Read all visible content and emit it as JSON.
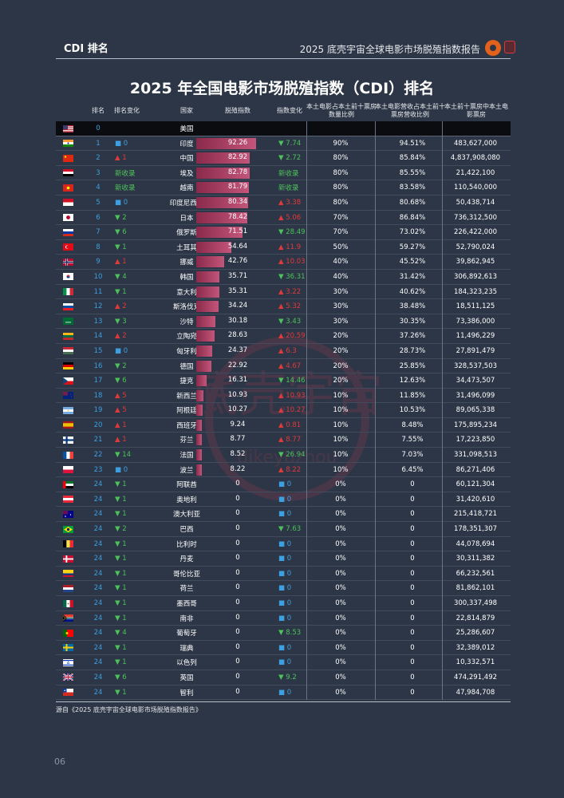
{
  "header": {
    "section_label": "CDI 排名",
    "report_title": "2025 底壳宇宙全球电影市场脱殖指数报告"
  },
  "title": "2025 年全国电影市场脱殖指数（CDI）排名",
  "columns": [
    "排名",
    "排名变化",
    "国家",
    "脱殖指数",
    "指数变化",
    "本土电影占本土前十票房数量比例",
    "本土电影营收占本土前十票房营收比例",
    "本土前十票房中本土电影票房"
  ],
  "watermark": {
    "cn": "底壳宇宙",
    "en": "dikeyuzhou"
  },
  "rows": [
    {
      "flag": "us",
      "rank": "0",
      "rank_change": "",
      "rc_dir": "none",
      "country": "美国",
      "cdi": "",
      "cdi_num": 0,
      "cdi_change": "",
      "cc_dir": "none",
      "p1": "",
      "p2": "",
      "box": ""
    },
    {
      "flag": "in",
      "rank": "1",
      "rank_change": "0",
      "rc_dir": "flat",
      "country": "印度",
      "cdi": "92.26",
      "cdi_num": 92.26,
      "cdi_change": "7.74",
      "cc_dir": "down",
      "p1": "90%",
      "p2": "94.51%",
      "box": "483,627,000"
    },
    {
      "flag": "cn",
      "rank": "2",
      "rank_change": "1",
      "rc_dir": "up",
      "country": "中国",
      "cdi": "82.92",
      "cdi_num": 82.92,
      "cdi_change": "2.72",
      "cc_dir": "down",
      "p1": "80%",
      "p2": "85.84%",
      "box": "4,837,908,080"
    },
    {
      "flag": "eg",
      "rank": "3",
      "rank_change": "新收录",
      "rc_dir": "new",
      "country": "埃及",
      "cdi": "82.78",
      "cdi_num": 82.78,
      "cdi_change": "新收录",
      "cc_dir": "new",
      "p1": "80%",
      "p2": "85.55%",
      "box": "21,422,100"
    },
    {
      "flag": "vn",
      "rank": "4",
      "rank_change": "新收录",
      "rc_dir": "new",
      "country": "越南",
      "cdi": "81.79",
      "cdi_num": 81.79,
      "cdi_change": "新收录",
      "cc_dir": "new",
      "p1": "80%",
      "p2": "83.58%",
      "box": "110,540,000"
    },
    {
      "flag": "id",
      "rank": "5",
      "rank_change": "0",
      "rc_dir": "flat",
      "country": "印度尼西亚",
      "cdi": "80.34",
      "cdi_num": 80.34,
      "cdi_change": "3.38",
      "cc_dir": "up",
      "p1": "80%",
      "p2": "80.68%",
      "box": "50,438,714"
    },
    {
      "flag": "jp",
      "rank": "6",
      "rank_change": "2",
      "rc_dir": "down",
      "country": "日本",
      "cdi": "78.42",
      "cdi_num": 78.42,
      "cdi_change": "5.06",
      "cc_dir": "up",
      "p1": "70%",
      "p2": "86.84%",
      "box": "736,312,500"
    },
    {
      "flag": "ru",
      "rank": "7",
      "rank_change": "6",
      "rc_dir": "down",
      "country": "俄罗斯",
      "cdi": "71.51",
      "cdi_num": 71.51,
      "cdi_change": "28.49",
      "cc_dir": "down",
      "p1": "70%",
      "p2": "73.02%",
      "box": "226,422,000"
    },
    {
      "flag": "tr",
      "rank": "8",
      "rank_change": "1",
      "rc_dir": "down",
      "country": "土耳其",
      "cdi": "54.64",
      "cdi_num": 54.64,
      "cdi_change": "11.9",
      "cc_dir": "up",
      "p1": "50%",
      "p2": "59.27%",
      "box": "52,790,024"
    },
    {
      "flag": "no",
      "rank": "9",
      "rank_change": "1",
      "rc_dir": "up",
      "country": "挪威",
      "cdi": "42.76",
      "cdi_num": 42.76,
      "cdi_change": "10.03",
      "cc_dir": "up",
      "p1": "40%",
      "p2": "45.52%",
      "box": "39,862,945"
    },
    {
      "flag": "kr",
      "rank": "10",
      "rank_change": "4",
      "rc_dir": "down",
      "country": "韩国",
      "cdi": "35.71",
      "cdi_num": 35.71,
      "cdi_change": "36.31",
      "cc_dir": "down",
      "p1": "40%",
      "p2": "31.42%",
      "box": "306,892,613"
    },
    {
      "flag": "it",
      "rank": "11",
      "rank_change": "1",
      "rc_dir": "down",
      "country": "意大利",
      "cdi": "35.31",
      "cdi_num": 35.31,
      "cdi_change": "3.22",
      "cc_dir": "up",
      "p1": "30%",
      "p2": "40.62%",
      "box": "184,323,235"
    },
    {
      "flag": "sk",
      "rank": "12",
      "rank_change": "2",
      "rc_dir": "up",
      "country": "斯洛伐克",
      "cdi": "34.24",
      "cdi_num": 34.24,
      "cdi_change": "5.32",
      "cc_dir": "up",
      "p1": "30%",
      "p2": "38.48%",
      "box": "18,511,125"
    },
    {
      "flag": "sa",
      "rank": "13",
      "rank_change": "3",
      "rc_dir": "down",
      "country": "沙特",
      "cdi": "30.18",
      "cdi_num": 30.18,
      "cdi_change": "3.43",
      "cc_dir": "down",
      "p1": "30%",
      "p2": "30.35%",
      "box": "73,386,000"
    },
    {
      "flag": "lt",
      "rank": "14",
      "rank_change": "2",
      "rc_dir": "up",
      "country": "立陶宛",
      "cdi": "28.63",
      "cdi_num": 28.63,
      "cdi_change": "20.59",
      "cc_dir": "up",
      "p1": "20%",
      "p2": "37.26%",
      "box": "11,496,229"
    },
    {
      "flag": "hu",
      "rank": "15",
      "rank_change": "0",
      "rc_dir": "flat",
      "country": "匈牙利",
      "cdi": "24.37",
      "cdi_num": 24.37,
      "cdi_change": "6.3",
      "cc_dir": "up",
      "p1": "20%",
      "p2": "28.73%",
      "box": "27,891,479"
    },
    {
      "flag": "de",
      "rank": "16",
      "rank_change": "2",
      "rc_dir": "down",
      "country": "德国",
      "cdi": "22.92",
      "cdi_num": 22.92,
      "cdi_change": "4.67",
      "cc_dir": "up",
      "p1": "20%",
      "p2": "25.85%",
      "box": "328,537,503"
    },
    {
      "flag": "cz",
      "rank": "17",
      "rank_change": "6",
      "rc_dir": "down",
      "country": "捷克",
      "cdi": "16.31",
      "cdi_num": 16.31,
      "cdi_change": "14.46",
      "cc_dir": "down",
      "p1": "20%",
      "p2": "12.63%",
      "box": "34,473,507"
    },
    {
      "flag": "nz",
      "rank": "18",
      "rank_change": "5",
      "rc_dir": "up",
      "country": "新西兰",
      "cdi": "10.93",
      "cdi_num": 10.93,
      "cdi_change": "10.93",
      "cc_dir": "up",
      "p1": "10%",
      "p2": "11.85%",
      "box": "31,496,099"
    },
    {
      "flag": "ar",
      "rank": "19",
      "rank_change": "5",
      "rc_dir": "up",
      "country": "阿根廷",
      "cdi": "10.27",
      "cdi_num": 10.27,
      "cdi_change": "10.27",
      "cc_dir": "up",
      "p1": "10%",
      "p2": "10.53%",
      "box": "89,065,338"
    },
    {
      "flag": "es",
      "rank": "20",
      "rank_change": "1",
      "rc_dir": "up",
      "country": "西班牙",
      "cdi": "9.24",
      "cdi_num": 9.24,
      "cdi_change": "0.81",
      "cc_dir": "up",
      "p1": "10%",
      "p2": "8.48%",
      "box": "175,895,234"
    },
    {
      "flag": "fi",
      "rank": "21",
      "rank_change": "1",
      "rc_dir": "up",
      "country": "芬兰",
      "cdi": "8.77",
      "cdi_num": 8.77,
      "cdi_change": "8.77",
      "cc_dir": "up",
      "p1": "10%",
      "p2": "7.55%",
      "box": "17,223,850"
    },
    {
      "flag": "fr",
      "rank": "22",
      "rank_change": "14",
      "rc_dir": "down",
      "country": "法国",
      "cdi": "8.52",
      "cdi_num": 8.52,
      "cdi_change": "26.94",
      "cc_dir": "down",
      "p1": "10%",
      "p2": "7.03%",
      "box": "331,098,513"
    },
    {
      "flag": "pl",
      "rank": "23",
      "rank_change": "0",
      "rc_dir": "flat",
      "country": "波兰",
      "cdi": "8.22",
      "cdi_num": 8.22,
      "cdi_change": "8.22",
      "cc_dir": "up",
      "p1": "10%",
      "p2": "6.45%",
      "box": "86,271,406"
    },
    {
      "flag": "ae",
      "rank": "24",
      "rank_change": "1",
      "rc_dir": "down",
      "country": "阿联酋",
      "cdi": "0",
      "cdi_num": 0,
      "cdi_change": "0",
      "cc_dir": "flat",
      "p1": "0%",
      "p2": "0",
      "box": "60,121,304"
    },
    {
      "flag": "at",
      "rank": "24",
      "rank_change": "1",
      "rc_dir": "down",
      "country": "奥地利",
      "cdi": "0",
      "cdi_num": 0,
      "cdi_change": "0",
      "cc_dir": "flat",
      "p1": "0%",
      "p2": "0",
      "box": "31,420,610"
    },
    {
      "flag": "au",
      "rank": "24",
      "rank_change": "1",
      "rc_dir": "down",
      "country": "澳大利亚",
      "cdi": "0",
      "cdi_num": 0,
      "cdi_change": "0",
      "cc_dir": "flat",
      "p1": "0%",
      "p2": "0",
      "box": "215,418,721"
    },
    {
      "flag": "br",
      "rank": "24",
      "rank_change": "2",
      "rc_dir": "down",
      "country": "巴西",
      "cdi": "0",
      "cdi_num": 0,
      "cdi_change": "7.63",
      "cc_dir": "down",
      "p1": "0%",
      "p2": "0",
      "box": "178,351,307"
    },
    {
      "flag": "be",
      "rank": "24",
      "rank_change": "1",
      "rc_dir": "down",
      "country": "比利时",
      "cdi": "0",
      "cdi_num": 0,
      "cdi_change": "0",
      "cc_dir": "flat",
      "p1": "0%",
      "p2": "0",
      "box": "44,078,694"
    },
    {
      "flag": "dk",
      "rank": "24",
      "rank_change": "1",
      "rc_dir": "down",
      "country": "丹麦",
      "cdi": "0",
      "cdi_num": 0,
      "cdi_change": "0",
      "cc_dir": "flat",
      "p1": "0%",
      "p2": "0",
      "box": "30,311,382"
    },
    {
      "flag": "co",
      "rank": "24",
      "rank_change": "1",
      "rc_dir": "down",
      "country": "哥伦比亚",
      "cdi": "0",
      "cdi_num": 0,
      "cdi_change": "0",
      "cc_dir": "flat",
      "p1": "0%",
      "p2": "0",
      "box": "66,232,561"
    },
    {
      "flag": "nl",
      "rank": "24",
      "rank_change": "1",
      "rc_dir": "down",
      "country": "荷兰",
      "cdi": "0",
      "cdi_num": 0,
      "cdi_change": "0",
      "cc_dir": "flat",
      "p1": "0%",
      "p2": "0",
      "box": "81,862,101"
    },
    {
      "flag": "mx",
      "rank": "24",
      "rank_change": "1",
      "rc_dir": "down",
      "country": "墨西哥",
      "cdi": "0",
      "cdi_num": 0,
      "cdi_change": "0",
      "cc_dir": "flat",
      "p1": "0%",
      "p2": "0",
      "box": "300,337,498"
    },
    {
      "flag": "za",
      "rank": "24",
      "rank_change": "1",
      "rc_dir": "down",
      "country": "南非",
      "cdi": "0",
      "cdi_num": 0,
      "cdi_change": "0",
      "cc_dir": "flat",
      "p1": "0%",
      "p2": "0",
      "box": "22,814,879"
    },
    {
      "flag": "pt",
      "rank": "24",
      "rank_change": "4",
      "rc_dir": "down",
      "country": "葡萄牙",
      "cdi": "0",
      "cdi_num": 0,
      "cdi_change": "8.53",
      "cc_dir": "down",
      "p1": "0%",
      "p2": "0",
      "box": "25,286,607"
    },
    {
      "flag": "se",
      "rank": "24",
      "rank_change": "1",
      "rc_dir": "down",
      "country": "瑞典",
      "cdi": "0",
      "cdi_num": 0,
      "cdi_change": "0",
      "cc_dir": "flat",
      "p1": "0%",
      "p2": "0",
      "box": "32,389,012"
    },
    {
      "flag": "il",
      "rank": "24",
      "rank_change": "1",
      "rc_dir": "down",
      "country": "以色列",
      "cdi": "0",
      "cdi_num": 0,
      "cdi_change": "0",
      "cc_dir": "flat",
      "p1": "0%",
      "p2": "0",
      "box": "10,332,571"
    },
    {
      "flag": "gb",
      "rank": "24",
      "rank_change": "6",
      "rc_dir": "down",
      "country": "英国",
      "cdi": "0",
      "cdi_num": 0,
      "cdi_change": "9.2",
      "cc_dir": "down",
      "p1": "0%",
      "p2": "0",
      "box": "474,291,492"
    },
    {
      "flag": "cl",
      "rank": "24",
      "rank_change": "1",
      "rc_dir": "down",
      "country": "智利",
      "cdi": "0",
      "cdi_num": 0,
      "cdi_change": "0",
      "cc_dir": "flat",
      "p1": "0%",
      "p2": "0",
      "box": "47,984,708"
    }
  ],
  "source": "源自《2025 底壳宇宙全球电影市场脱殖指数报告》",
  "page_number": "06",
  "colors": {
    "background": "#2d3646",
    "bar": "#b34a6e",
    "up": "#e0393a",
    "down": "#4cc25a",
    "flat": "#3c9fe0"
  }
}
